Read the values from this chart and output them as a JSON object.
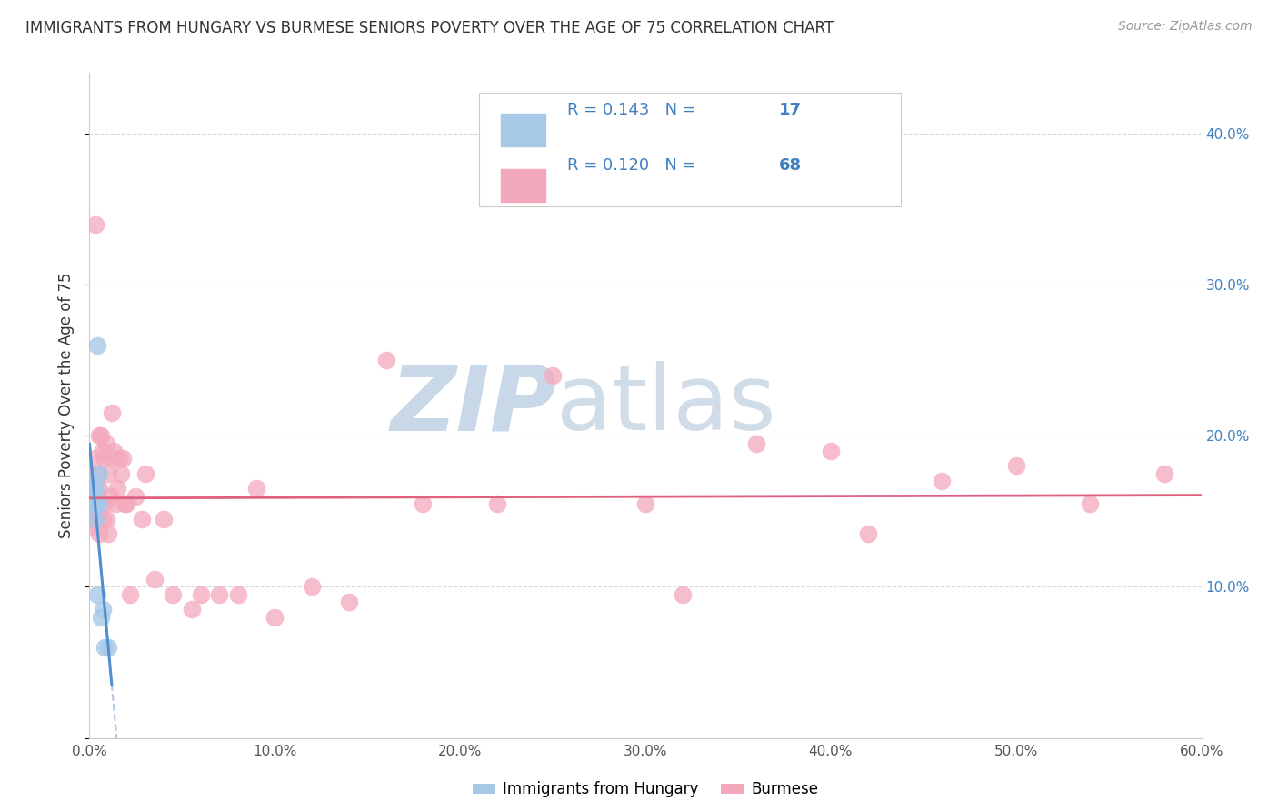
{
  "title": "IMMIGRANTS FROM HUNGARY VS BURMESE SENIORS POVERTY OVER THE AGE OF 75 CORRELATION CHART",
  "source": "Source: ZipAtlas.com",
  "ylabel": "Seniors Poverty Over the Age of 75",
  "xlim": [
    0,
    0.6
  ],
  "ylim": [
    0,
    0.44
  ],
  "ytick_vals": [
    0,
    0.1,
    0.2,
    0.3,
    0.4
  ],
  "xtick_vals": [
    0,
    0.1,
    0.2,
    0.3,
    0.4,
    0.5,
    0.6
  ],
  "hungary_color": "#a8c8e8",
  "burmese_color": "#f4a8bc",
  "hungary_line_color": "#5090d0",
  "burmese_line_color": "#e06080",
  "hungary_dash_color": "#a0b8d8",
  "legend_color": "#4080c0",
  "hungary_x": [
    0.001,
    0.001,
    0.002,
    0.002,
    0.002,
    0.002,
    0.003,
    0.003,
    0.003,
    0.004,
    0.004,
    0.005,
    0.005,
    0.006,
    0.007,
    0.008,
    0.01
  ],
  "hungary_y": [
    0.155,
    0.165,
    0.155,
    0.16,
    0.165,
    0.17,
    0.145,
    0.155,
    0.165,
    0.095,
    0.26,
    0.155,
    0.175,
    0.08,
    0.085,
    0.06,
    0.06
  ],
  "burmese_x": [
    0.001,
    0.001,
    0.001,
    0.002,
    0.002,
    0.002,
    0.002,
    0.003,
    0.003,
    0.003,
    0.003,
    0.003,
    0.004,
    0.004,
    0.004,
    0.005,
    0.005,
    0.005,
    0.005,
    0.006,
    0.006,
    0.007,
    0.007,
    0.008,
    0.008,
    0.009,
    0.009,
    0.01,
    0.01,
    0.011,
    0.012,
    0.012,
    0.013,
    0.014,
    0.015,
    0.016,
    0.017,
    0.018,
    0.019,
    0.02,
    0.022,
    0.025,
    0.028,
    0.03,
    0.035,
    0.04,
    0.045,
    0.055,
    0.06,
    0.07,
    0.08,
    0.09,
    0.1,
    0.12,
    0.14,
    0.16,
    0.18,
    0.22,
    0.25,
    0.3,
    0.32,
    0.36,
    0.4,
    0.42,
    0.46,
    0.5,
    0.54,
    0.58
  ],
  "burmese_y": [
    0.145,
    0.155,
    0.165,
    0.14,
    0.155,
    0.165,
    0.175,
    0.145,
    0.16,
    0.17,
    0.185,
    0.34,
    0.145,
    0.16,
    0.175,
    0.135,
    0.155,
    0.165,
    0.2,
    0.155,
    0.2,
    0.145,
    0.19,
    0.155,
    0.185,
    0.145,
    0.195,
    0.135,
    0.175,
    0.16,
    0.185,
    0.215,
    0.19,
    0.155,
    0.165,
    0.185,
    0.175,
    0.185,
    0.155,
    0.155,
    0.095,
    0.16,
    0.145,
    0.175,
    0.105,
    0.145,
    0.095,
    0.085,
    0.095,
    0.095,
    0.095,
    0.165,
    0.08,
    0.1,
    0.09,
    0.25,
    0.155,
    0.155,
    0.24,
    0.155,
    0.095,
    0.195,
    0.19,
    0.135,
    0.17,
    0.18,
    0.155,
    0.175
  ],
  "watermark_zip": "ZIP",
  "watermark_atlas": "atlas",
  "watermark_color_zip": "#c8d8e8",
  "watermark_color_atlas": "#c8d8e8",
  "background_color": "#ffffff",
  "grid_color": "#d8d8d8"
}
